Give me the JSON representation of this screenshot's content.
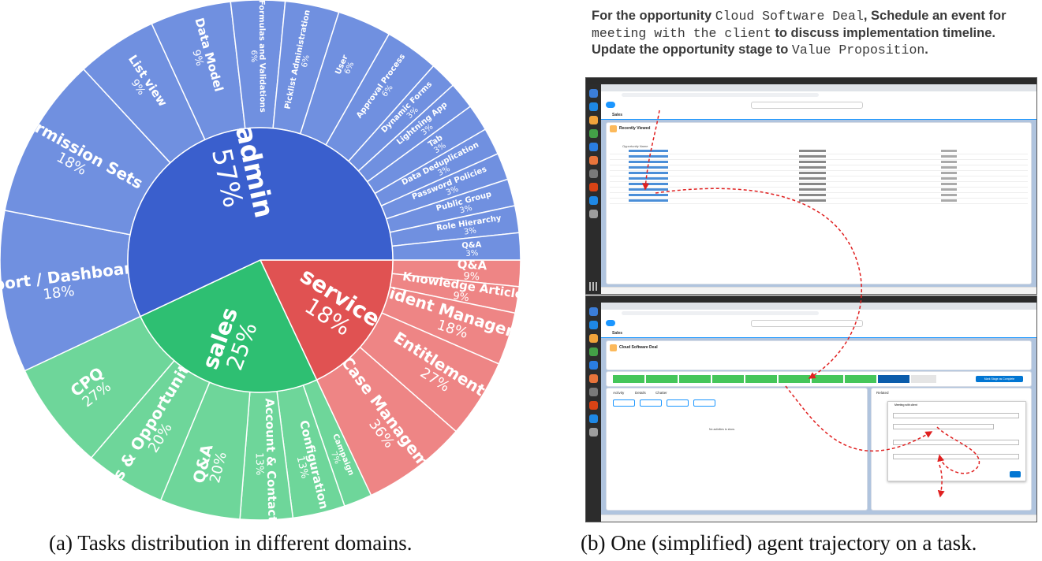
{
  "figure_a": {
    "caption": "(a) Tasks distribution in different domains.",
    "colors": {
      "admin": "#3a5fcd",
      "admin_outer": "#7090e0",
      "sales": "#2ebf72",
      "sales_outer": "#6ed69a",
      "service": "#e05252",
      "service_outer": "#ee8585"
    }
  },
  "chart_data": {
    "type": "sunburst",
    "inner": [
      {
        "name": "admin",
        "value": 57
      },
      {
        "name": "service",
        "value": 18
      },
      {
        "name": "sales",
        "value": 25
      }
    ],
    "outer": {
      "admin": [
        {
          "name": "Report / Dashboard",
          "value": 18
        },
        {
          "name": "Permission Sets",
          "value": 18
        },
        {
          "name": "List view",
          "value": 9
        },
        {
          "name": "Data Model",
          "value": 9
        },
        {
          "name": "Formulas and Validations",
          "value": 6
        },
        {
          "name": "Picklist Administration",
          "value": 6
        },
        {
          "name": "User",
          "value": 6
        },
        {
          "name": "Approval Process",
          "value": 6
        },
        {
          "name": "Dynamic Forms",
          "value": 3
        },
        {
          "name": "Lightning App",
          "value": 3
        },
        {
          "name": "Tab",
          "value": 3
        },
        {
          "name": "Data Deduplication",
          "value": 3
        },
        {
          "name": "Password Policies",
          "value": 3
        },
        {
          "name": "Public Group",
          "value": 3
        },
        {
          "name": "Role Hierarchy",
          "value": 3
        },
        {
          "name": "Q&A",
          "value": 3
        }
      ],
      "service": [
        {
          "name": "Q&A",
          "value": 9
        },
        {
          "name": "Knowledge Article",
          "value": 9
        },
        {
          "name": "Incident Management",
          "value": 18
        },
        {
          "name": "Entitlements",
          "value": 27
        },
        {
          "name": "Case Management",
          "value": 36
        }
      ],
      "sales": [
        {
          "name": "Campaign",
          "value": 7
        },
        {
          "name": "Configuration",
          "value": 13
        },
        {
          "name": "Account & Contacts",
          "value": 13
        },
        {
          "name": "Q&A",
          "value": 20
        },
        {
          "name": "Leads & Opportunities",
          "value": 20
        },
        {
          "name": "CPQ",
          "value": 27
        }
      ]
    }
  },
  "figure_b": {
    "caption": "(b) One (simplified) agent trajectory on a task.",
    "task": {
      "p1": "For the opportunity ",
      "m1": "Cloud Software Deal",
      "p2": ", Schedule an event for ",
      "m2": "meeting with the client",
      "p3": " to discuss implementation timeline. Update the opportunity stage to ",
      "m3": "Value Proposition",
      "p4": "."
    },
    "screenshot_1": {
      "app_name": "Sales",
      "list_title": "Recently Viewed",
      "column_name": "Opportunity Name",
      "rows": 10
    },
    "screenshot_2": {
      "app_name": "Sales",
      "record_title": "Cloud Software Deal",
      "tab_activity": "Activity",
      "tab_details": "Details",
      "tab_chatter": "Chatter",
      "panel_related": "Related",
      "mark_stage_button": "Mark Stage as Complete",
      "empty_activity": "No activities to show.",
      "event_subject": "Meeting with client"
    },
    "arrow_color": "#e02020"
  }
}
